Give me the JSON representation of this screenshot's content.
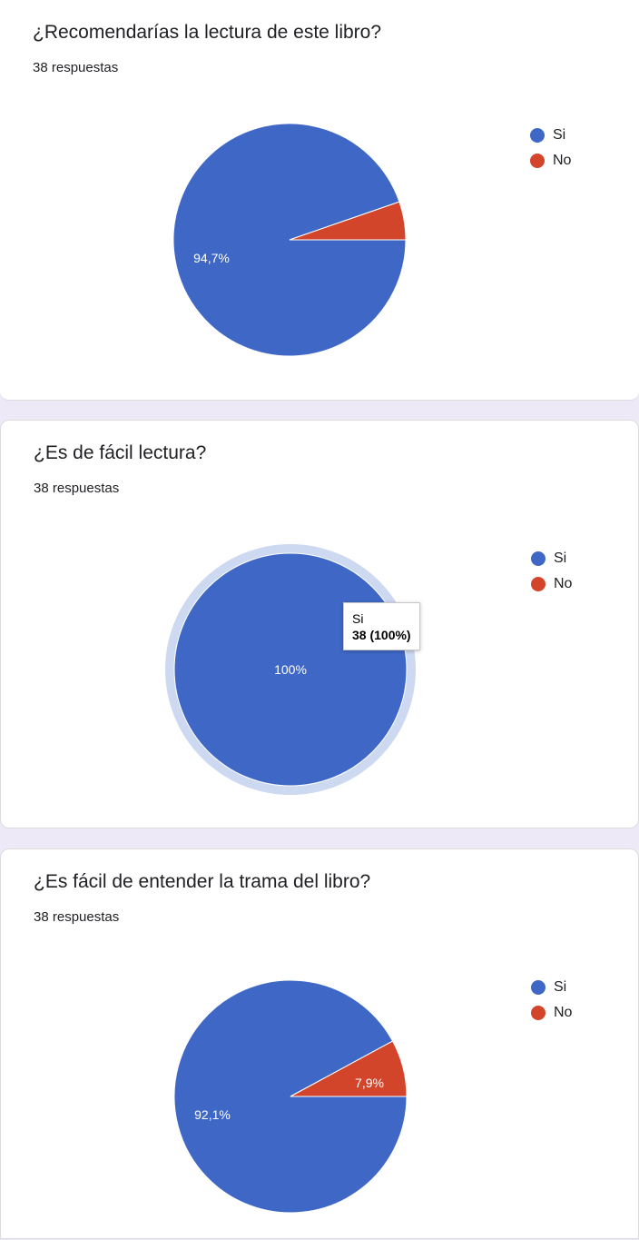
{
  "colors": {
    "si": "#3f68c6",
    "no": "#d2452b",
    "highlight": "#cdd8f1"
  },
  "legend": [
    {
      "label": "Si",
      "color": "#3f68c6"
    },
    {
      "label": "No",
      "color": "#d2452b"
    }
  ],
  "cards": [
    {
      "title": "¿Recomendarías la lectura de este libro?",
      "count": "38 respuestas"
    },
    {
      "title": "¿Es de fácil lectura?",
      "count": "38 respuestas",
      "tooltip": {
        "label": "Si",
        "value": "38 (100%)"
      }
    },
    {
      "title": "¿Es fácil de entender la trama del libro?",
      "count": "38 respuestas"
    }
  ],
  "chart_data": [
    {
      "type": "pie",
      "categories": [
        "Si",
        "No"
      ],
      "values": [
        94.7,
        5.3
      ],
      "labels": [
        "94,7%",
        ""
      ],
      "colors": [
        "#3f68c6",
        "#d2452b"
      ]
    },
    {
      "type": "pie",
      "categories": [
        "Si",
        "No"
      ],
      "values": [
        100,
        0
      ],
      "labels": [
        "100%",
        ""
      ],
      "colors": [
        "#3f68c6",
        "#d2452b"
      ]
    },
    {
      "type": "pie",
      "categories": [
        "Si",
        "No"
      ],
      "values": [
        92.1,
        7.9
      ],
      "labels": [
        "92,1%",
        "7,9%"
      ],
      "colors": [
        "#3f68c6",
        "#d2452b"
      ]
    }
  ]
}
